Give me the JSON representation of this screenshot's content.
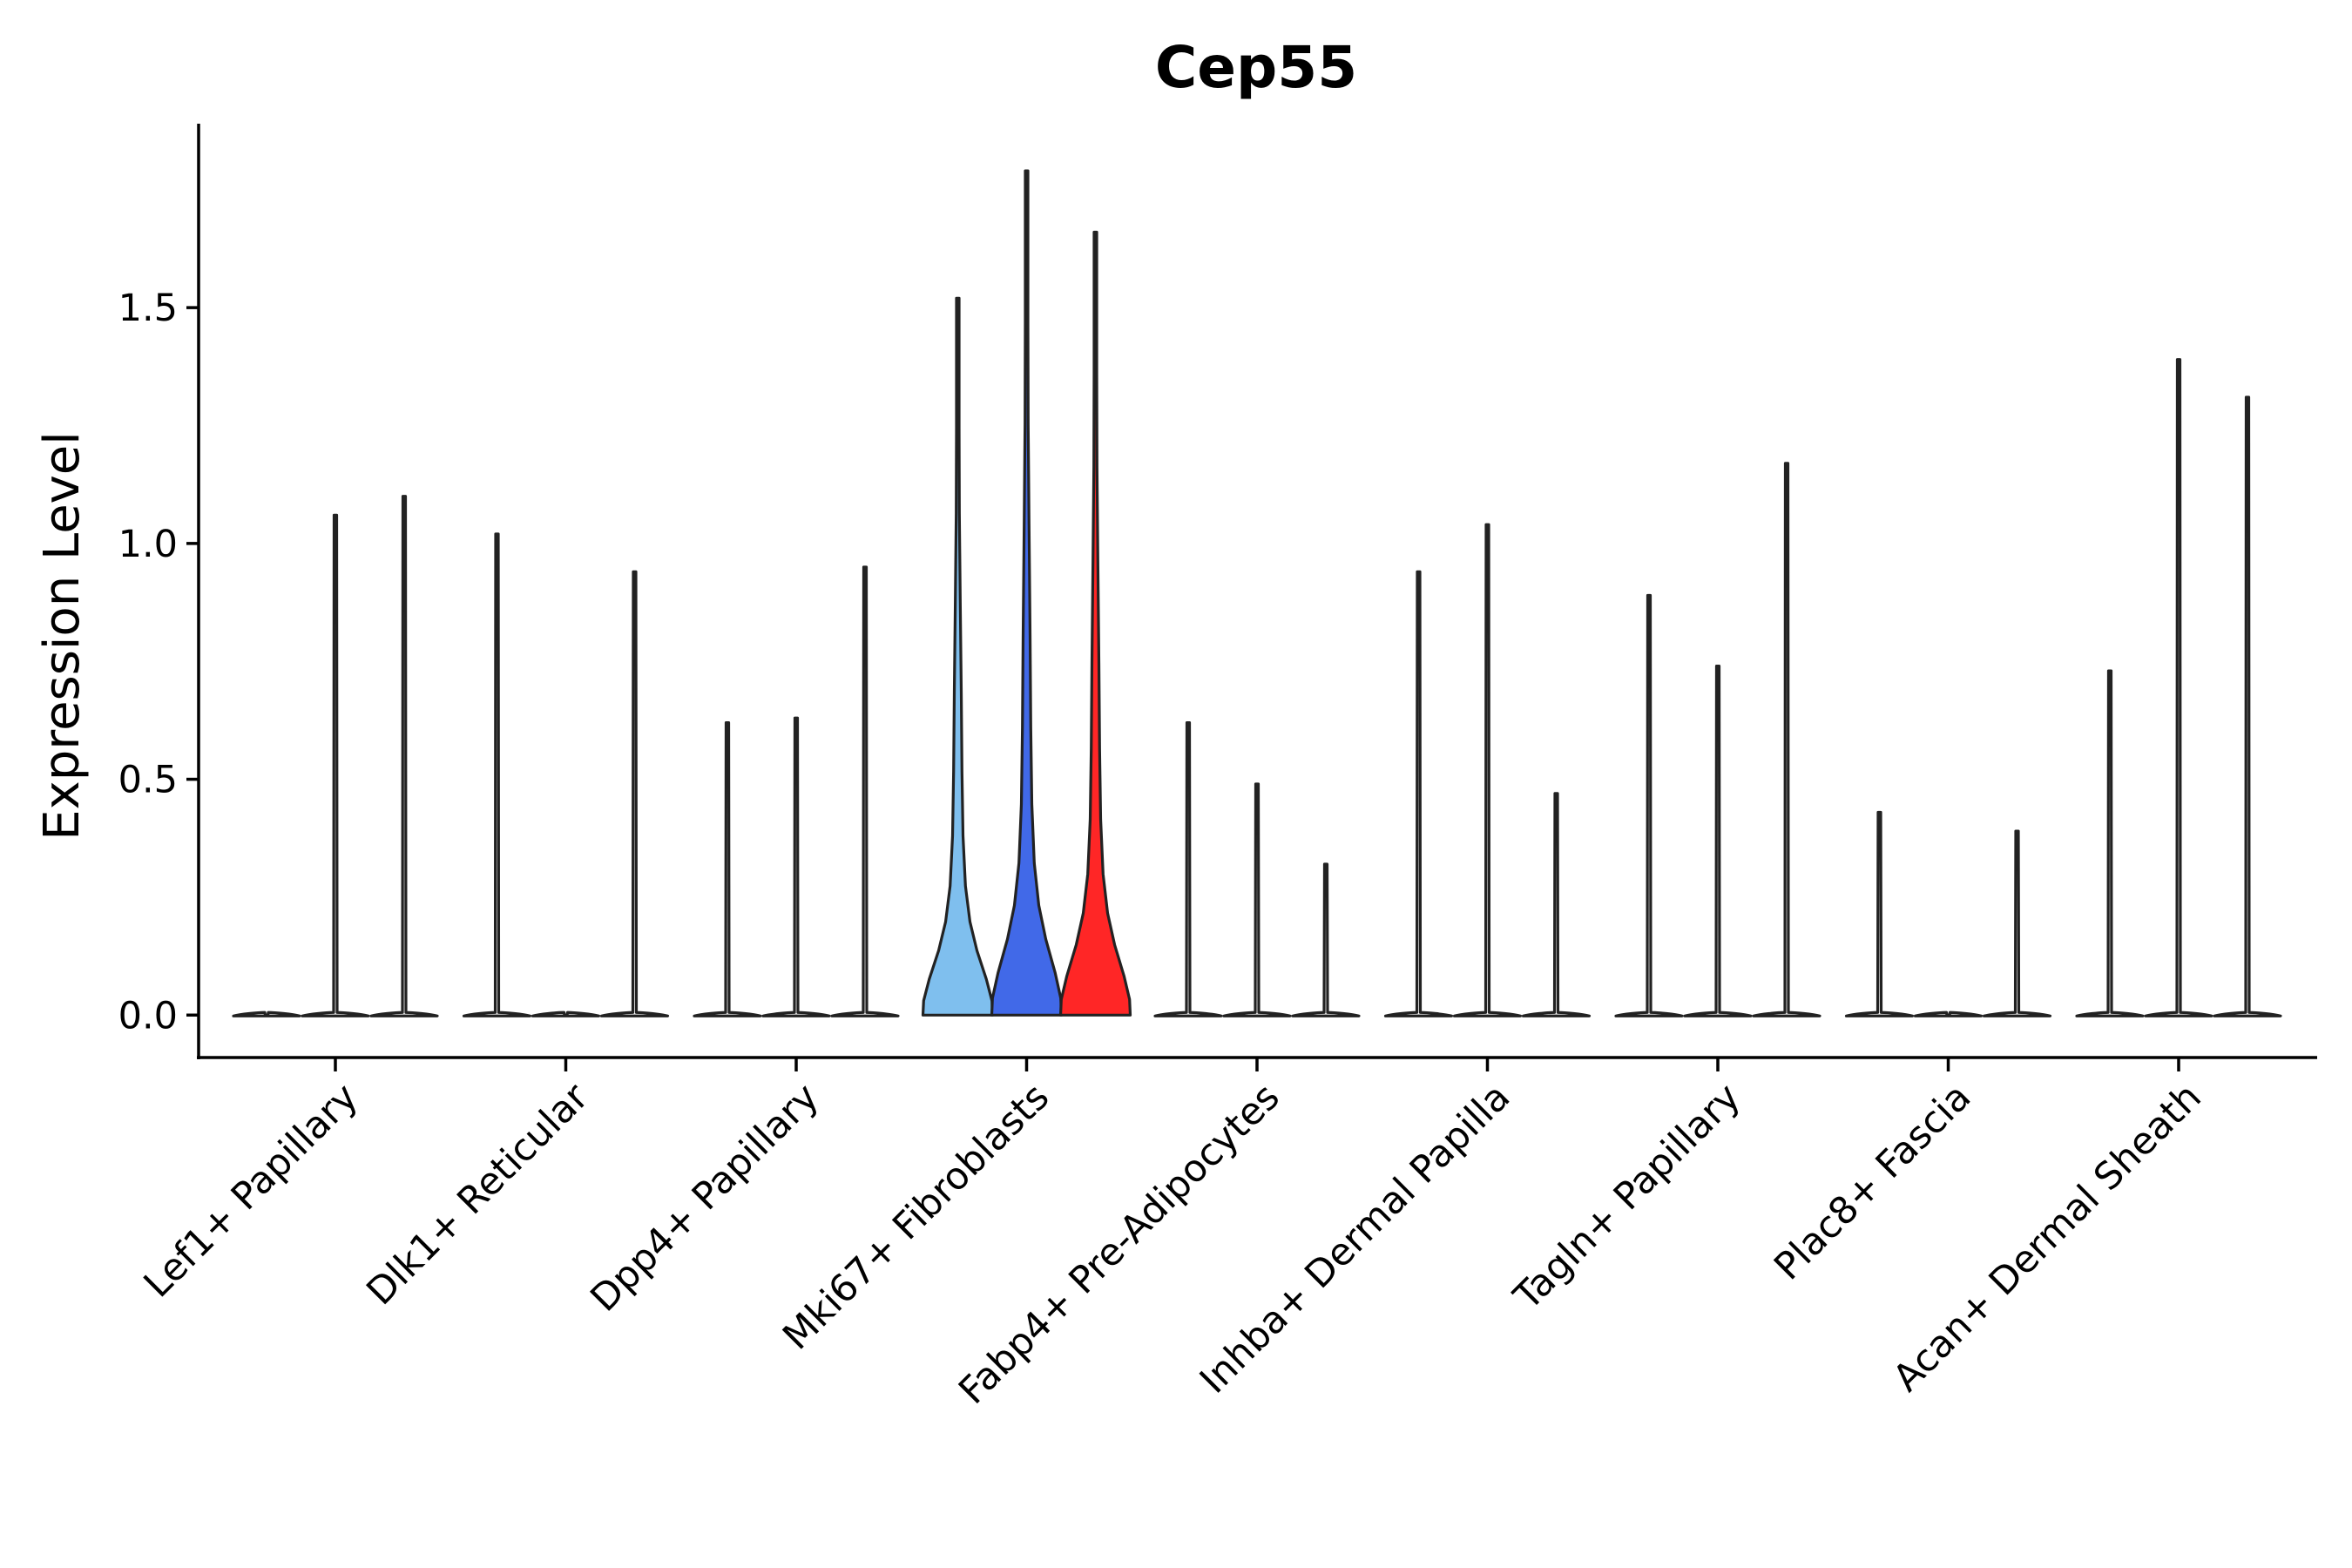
{
  "chart_data": {
    "type": "violin",
    "title": "Cep55",
    "xlabel": "",
    "ylabel": "Expression Level",
    "ylim": [
      -0.09,
      1.89
    ],
    "yticks": [
      0.0,
      0.5,
      1.0,
      1.5
    ],
    "ytick_labels": [
      "0.0",
      "0.5",
      "1.0",
      "1.5"
    ],
    "grid": false,
    "legend": "none",
    "categories": [
      "Lef1+ Papillary",
      "Dlk1+ Reticular",
      "Dpp4+ Papillary",
      "Mki67+ Fibroblasts",
      "Fabp4+ Pre-Adipocytes",
      "Inhba+ Dermal Papilla",
      "Tagln+ Papillary",
      "Plac8+ Fascia",
      "Acan+ Dermal Sheath"
    ],
    "groups": [
      {
        "category": "Lef1+ Papillary",
        "violins": [
          {
            "max": 0.0,
            "color": "#ffffff"
          },
          {
            "max": 1.06,
            "color": "#ffffff"
          },
          {
            "max": 1.1,
            "color": "#ffffff"
          }
        ]
      },
      {
        "category": "Dlk1+ Reticular",
        "violins": [
          {
            "max": 1.02,
            "color": "#ffffff"
          },
          {
            "max": 0.0,
            "color": "#ffffff"
          },
          {
            "max": 0.94,
            "color": "#ffffff"
          }
        ]
      },
      {
        "category": "Dpp4+ Papillary",
        "violins": [
          {
            "max": 0.62,
            "color": "#ffffff"
          },
          {
            "max": 0.63,
            "color": "#ffffff"
          },
          {
            "max": 0.95,
            "color": "#ffffff"
          }
        ]
      },
      {
        "category": "Mki67+ Fibroblasts",
        "violins": [
          {
            "max": 1.52,
            "color": "#7fbfee",
            "density": "filled"
          },
          {
            "max": 1.79,
            "color": "#4169e8",
            "density": "filled"
          },
          {
            "max": 1.66,
            "color": "#ff2626",
            "density": "filled"
          }
        ]
      },
      {
        "category": "Fabp4+ Pre-Adipocytes",
        "violins": [
          {
            "max": 0.62,
            "color": "#ffffff"
          },
          {
            "max": 0.49,
            "color": "#ffffff"
          },
          {
            "max": 0.32,
            "color": "#ffffff"
          }
        ]
      },
      {
        "category": "Inhba+ Dermal Papilla",
        "violins": [
          {
            "max": 0.94,
            "color": "#ffffff"
          },
          {
            "max": 1.04,
            "color": "#ffffff"
          },
          {
            "max": 0.47,
            "color": "#ffffff"
          }
        ]
      },
      {
        "category": "Tagln+ Papillary",
        "violins": [
          {
            "max": 0.89,
            "color": "#ffffff"
          },
          {
            "max": 0.74,
            "color": "#ffffff"
          },
          {
            "max": 1.17,
            "color": "#ffffff"
          }
        ]
      },
      {
        "category": "Plac8+ Fascia",
        "violins": [
          {
            "max": 0.43,
            "color": "#ffffff"
          },
          {
            "max": 0.0,
            "color": "#ffffff"
          },
          {
            "max": 0.39,
            "color": "#ffffff"
          }
        ]
      },
      {
        "category": "Acan+ Dermal Sheath",
        "violins": [
          {
            "max": 0.73,
            "color": "#ffffff"
          },
          {
            "max": 1.39,
            "color": "#ffffff"
          },
          {
            "max": 1.31,
            "color": "#ffffff"
          }
        ]
      }
    ]
  }
}
